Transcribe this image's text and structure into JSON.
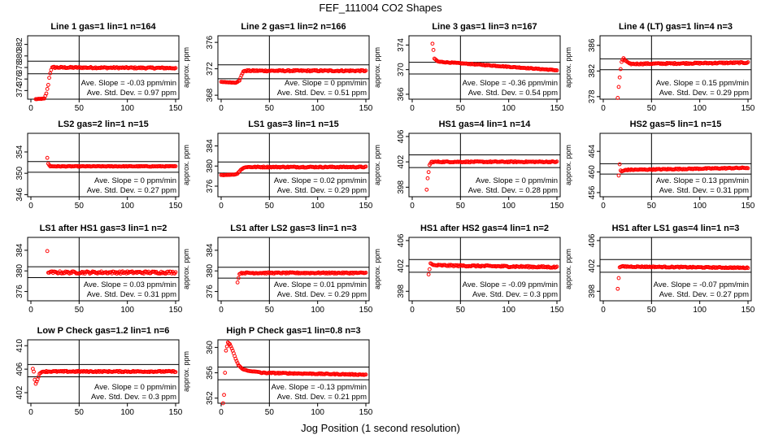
{
  "title": "FEF_111004  CO2 Shapes",
  "xlabel": "Jog Position (1 second resolution)",
  "colors": {
    "points": "#ff0000",
    "axis": "#000000"
  },
  "chart_data": [
    {
      "type": "scatter",
      "title": "Line 1 gas=1 lin=1 n=164",
      "ylabel": "approx. ppm",
      "xlim": [
        0,
        150
      ],
      "xticks": [
        0,
        50,
        100,
        150
      ],
      "ylim": [
        372.5,
        383.5
      ],
      "yticks": [
        374,
        376,
        378,
        380,
        382
      ],
      "hlines": [
        379.1,
        376.9
      ],
      "vline": 50,
      "slope": "Ave. Slope = -0.03 ppm/min",
      "std": "Ave. Std. Dev. = 0.97 ppm",
      "shape": {
        "start": 5,
        "end": 150,
        "transient": [
          [
            5,
            372.5
          ],
          [
            14,
            372.6
          ],
          [
            16,
            373.5
          ],
          [
            18,
            375
          ],
          [
            19,
            376.2
          ],
          [
            20,
            377
          ],
          [
            21,
            377.6
          ],
          [
            22,
            378
          ],
          [
            24,
            378.1
          ]
        ],
        "plateau": 378.0,
        "plateau_end": 377.9,
        "noise": 0.12
      }
    },
    {
      "type": "scatter",
      "title": "Line 2 gas=1 lin=2 n=166",
      "ylabel": "approx. ppm",
      "xlim": [
        0,
        150
      ],
      "xticks": [
        0,
        50,
        100,
        150
      ],
      "ylim": [
        367.4,
        377
      ],
      "yticks": [
        368,
        372,
        376
      ],
      "hlines": [
        372.6,
        370.5
      ],
      "vline": 50,
      "slope": "Ave. Slope = 0 ppm/min",
      "std": "Ave. Std. Dev. = 0.51 ppm",
      "shape": {
        "start": 0,
        "end": 150,
        "transient": [
          [
            0,
            370.0
          ],
          [
            15,
            369.9
          ],
          [
            19,
            370.2
          ],
          [
            21,
            371
          ],
          [
            23,
            371.6
          ],
          [
            25,
            371.7
          ]
        ],
        "plateau": 371.7,
        "plateau_end": 371.7,
        "noise": 0.1
      }
    },
    {
      "type": "scatter",
      "title": "Line 3 gas=1 lin=3 n=167",
      "ylabel": "approx. ppm",
      "xlim": [
        0,
        150
      ],
      "xticks": [
        0,
        50,
        100,
        150
      ],
      "ylim": [
        365.2,
        375.5
      ],
      "yticks": [
        366,
        370,
        374
      ],
      "hlines": [
        371.2,
        369.3
      ],
      "vline": 50,
      "slope": "Ave. Slope = -0.36 ppm/min",
      "std": "Ave. Std. Dev. = 0.54 ppm",
      "shape": {
        "start": 21,
        "end": 150,
        "transient": [
          [
            21,
            374.2
          ],
          [
            22,
            373.2
          ],
          [
            23,
            371.8
          ],
          [
            26,
            371.4
          ]
        ],
        "plateau": 371.3,
        "plateau_end": 369.9,
        "noise": 0.06
      }
    },
    {
      "type": "scatter",
      "title": "Line 4 (LT) gas=1 lin=4 n=3",
      "ylabel": "approx. ppm",
      "xlim": [
        0,
        150
      ],
      "xticks": [
        0,
        50,
        100,
        150
      ],
      "ylim": [
        377.6,
        387.5
      ],
      "yticks": [
        378,
        382,
        386
      ],
      "hlines": [
        383.9,
        382.2
      ],
      "vline": 50,
      "slope": "Ave. Slope = 0.15 ppm/min",
      "std": "Ave. Std. Dev. = 0.29 ppm",
      "shape": {
        "start": 15,
        "end": 150,
        "transient": [
          [
            15,
            377.8
          ],
          [
            16,
            379.5
          ],
          [
            17,
            381
          ],
          [
            18,
            382.3
          ],
          [
            19,
            383.4
          ],
          [
            21,
            384
          ],
          [
            23,
            383.6
          ],
          [
            26,
            383.3
          ]
        ],
        "plateau": 383.1,
        "plateau_end": 383.3,
        "noise": 0.1
      }
    },
    {
      "type": "scatter",
      "title": "LS2 gas=2 lin=1 n=15",
      "ylabel": "approx. ppm",
      "xlim": [
        0,
        150
      ],
      "xticks": [
        0,
        50,
        100,
        150
      ],
      "ylim": [
        345.6,
        357.5
      ],
      "yticks": [
        346,
        350,
        354
      ],
      "hlines": [
        352.2,
        350.2
      ],
      "vline": 50,
      "slope": "Ave. Slope = 0 ppm/min",
      "std": "Ave. Std. Dev. = 0.27 ppm",
      "shape": {
        "start": 17,
        "end": 150,
        "transient": [
          [
            17,
            352.9
          ],
          [
            18,
            351.8
          ],
          [
            20,
            351.3
          ]
        ],
        "plateau": 351.3,
        "plateau_end": 351.3,
        "noise": 0.06
      }
    },
    {
      "type": "scatter",
      "title": "LS1 gas=3 lin=1 n=15",
      "ylabel": "approx. ppm",
      "xlim": [
        0,
        150
      ],
      "xticks": [
        0,
        50,
        100,
        150
      ],
      "ylim": [
        373.9,
        386.5
      ],
      "yticks": [
        376,
        380,
        384
      ],
      "hlines": [
        380.8,
        378.6
      ],
      "vline": 50,
      "slope": "Ave. Slope = 0.02 ppm/min",
      "std": "Ave. Std. Dev. = 0.29 ppm",
      "shape": {
        "start": 0,
        "end": 150,
        "transient": [
          [
            0,
            378.2
          ],
          [
            14,
            378.3
          ],
          [
            17,
            378.5
          ],
          [
            20,
            379.2
          ],
          [
            23,
            379.6
          ],
          [
            26,
            379.8
          ]
        ],
        "plateau": 379.8,
        "plateau_end": 379.8,
        "noise": 0.1
      }
    },
    {
      "type": "scatter",
      "title": "HS1 gas=4 lin=1 n=14",
      "ylabel": "approx. ppm",
      "xlim": [
        0,
        150
      ],
      "xticks": [
        0,
        50,
        100,
        150
      ],
      "ylim": [
        396.5,
        406.5
      ],
      "yticks": [
        398,
        402,
        406
      ],
      "hlines": [
        403.1,
        401.1
      ],
      "vline": 50,
      "slope": "Ave. Slope = 0 ppm/min",
      "std": "Ave. Std. Dev. = 0.28 ppm",
      "shape": {
        "start": 15,
        "end": 150,
        "transient": [
          [
            15,
            397.6
          ],
          [
            16,
            399.4
          ],
          [
            17,
            400.4
          ],
          [
            18,
            401.5
          ],
          [
            20,
            402
          ]
        ],
        "plateau": 402.0,
        "plateau_end": 402.0,
        "noise": 0.08
      }
    },
    {
      "type": "scatter",
      "title": "HS2 gas=5 lin=1 n=15",
      "ylabel": "approx. ppm",
      "xlim": [
        0,
        150
      ],
      "xticks": [
        0,
        50,
        100,
        150
      ],
      "ylim": [
        455.2,
        467.5
      ],
      "yticks": [
        456,
        460,
        464
      ],
      "hlines": [
        461.6,
        459.6
      ],
      "vline": 50,
      "slope": "Ave. Slope = 0.13 ppm/min",
      "std": "Ave. Std. Dev. = 0.31 ppm",
      "shape": {
        "start": 16,
        "end": 150,
        "transient": [
          [
            16,
            459.3
          ],
          [
            17,
            461.5
          ],
          [
            18,
            460.3
          ],
          [
            19,
            460.1
          ],
          [
            22,
            460.3
          ]
        ],
        "plateau": 460.4,
        "plateau_end": 460.8,
        "noise": 0.1
      }
    },
    {
      "type": "scatter",
      "title": "LS1 after HS1 gas=3 lin=1 n=2",
      "ylabel": "approx. ppm",
      "xlim": [
        0,
        150
      ],
      "xticks": [
        0,
        50,
        100,
        150
      ],
      "ylim": [
        374.2,
        386.5
      ],
      "yticks": [
        376,
        380,
        384
      ],
      "hlines": [
        380.8,
        378.7
      ],
      "vline": 50,
      "slope": "Ave. Slope = 0.03 ppm/min",
      "std": "Ave. Std. Dev. = 0.31 ppm",
      "shape": {
        "start": 17,
        "end": 150,
        "transient": [
          [
            17,
            383.8
          ],
          [
            18,
            379.6
          ],
          [
            20,
            379.8
          ]
        ],
        "plateau": 379.7,
        "plateau_end": 379.7,
        "noise": 0.22
      }
    },
    {
      "type": "scatter",
      "title": "LS1 after LS2 gas=3 lin=1 n=3",
      "ylabel": "approx. ppm",
      "xlim": [
        0,
        150
      ],
      "xticks": [
        0,
        50,
        100,
        150
      ],
      "ylim": [
        374.2,
        386.5
      ],
      "yticks": [
        376,
        380,
        384
      ],
      "hlines": [
        380.7,
        378.6
      ],
      "vline": 50,
      "slope": "Ave. Slope = 0.01 ppm/min",
      "std": "Ave. Std. Dev. = 0.29 ppm",
      "shape": {
        "start": 17,
        "end": 150,
        "transient": [
          [
            17,
            377.8
          ],
          [
            19,
            379.4
          ],
          [
            21,
            379.6
          ]
        ],
        "plateau": 379.6,
        "plateau_end": 379.6,
        "noise": 0.12
      }
    },
    {
      "type": "scatter",
      "title": "HS1 after HS2 gas=4 lin=1 n=2",
      "ylabel": "approx. ppm",
      "xlim": [
        0,
        150
      ],
      "xticks": [
        0,
        50,
        100,
        150
      ],
      "ylim": [
        396.5,
        406.5
      ],
      "yticks": [
        398,
        402,
        406
      ],
      "hlines": [
        403.0,
        401.0
      ],
      "vline": 50,
      "slope": "Ave. Slope = -0.09 ppm/min",
      "std": "Ave. Std. Dev. = 0.3 ppm",
      "shape": {
        "start": 17,
        "end": 150,
        "transient": [
          [
            17,
            400.7
          ],
          [
            18,
            401.5
          ],
          [
            19,
            402.4
          ],
          [
            21,
            402.2
          ]
        ],
        "plateau": 402.1,
        "plateau_end": 401.8,
        "noise": 0.12
      }
    },
    {
      "type": "scatter",
      "title": "HS1 after LS1 gas=4 lin=1 n=3",
      "ylabel": "approx. ppm",
      "xlim": [
        0,
        150
      ],
      "xticks": [
        0,
        50,
        100,
        150
      ],
      "ylim": [
        396.5,
        406.5
      ],
      "yticks": [
        398,
        402,
        406
      ],
      "hlines": [
        403.0,
        401.0
      ],
      "vline": 50,
      "slope": "Ave. Slope = -0.07 ppm/min",
      "std": "Ave. Std. Dev. = 0.27 ppm",
      "shape": {
        "start": 15,
        "end": 150,
        "transient": [
          [
            15,
            398.4
          ],
          [
            17,
            401.8
          ],
          [
            19,
            401.9
          ]
        ],
        "plateau": 401.9,
        "plateau_end": 401.7,
        "noise": 0.08
      }
    },
    {
      "type": "scatter",
      "title": "Low P Check gas=1.2 lin=1 n=6",
      "ylabel": "approx. ppm",
      "xlim": [
        0,
        150
      ],
      "xticks": [
        0,
        50,
        100,
        150
      ],
      "ylim": [
        400.2,
        411
      ],
      "yticks": [
        402,
        406,
        410
      ],
      "hlines": [
        406.8,
        404.7
      ],
      "vline": 50,
      "slope": "Ave. Slope = 0 ppm/min",
      "std": "Ave. Std. Dev. = 0.3 ppm",
      "shape": {
        "start": 2,
        "end": 150,
        "transient": [
          [
            2,
            406.1
          ],
          [
            3,
            405.6
          ],
          [
            4,
            404.2
          ],
          [
            5,
            403.5
          ],
          [
            7,
            404.3
          ],
          [
            9,
            405.2
          ],
          [
            12,
            405.6
          ]
        ],
        "plateau": 405.6,
        "plateau_end": 405.6,
        "noise": 0.1
      }
    },
    {
      "type": "scatter",
      "title": "High P Check gas=1 lin=0.8 n=3",
      "ylabel": "approx. ppm",
      "xlim": [
        0,
        150
      ],
      "xticks": [
        0,
        50,
        100,
        150
      ],
      "ylim": [
        351.2,
        361.2
      ],
      "yticks": [
        352,
        356,
        360
      ],
      "hlines": [
        356.9,
        354.9
      ],
      "vline": 50,
      "slope": "Ave. Slope = -0.13 ppm/min",
      "std": "Ave. Std. Dev. = 0.21 ppm",
      "shape": {
        "start": 2,
        "end": 150,
        "transient": [
          [
            2,
            351.2
          ],
          [
            3,
            352.5
          ],
          [
            5,
            359.5
          ],
          [
            7,
            360.8
          ],
          [
            9,
            360.5
          ],
          [
            12,
            359.5
          ],
          [
            15,
            358.2
          ],
          [
            18,
            357.2
          ],
          [
            22,
            356.6
          ],
          [
            28,
            356.3
          ],
          [
            40,
            356.1
          ]
        ],
        "plateau": 356.0,
        "plateau_end": 355.7,
        "noise": 0.08
      }
    }
  ]
}
